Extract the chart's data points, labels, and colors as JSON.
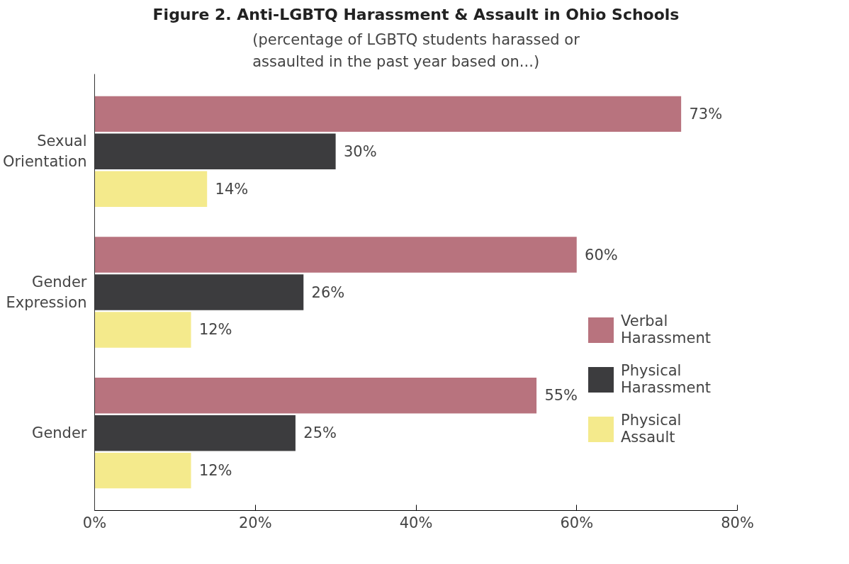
{
  "chart_data": {
    "type": "bar",
    "orientation": "horizontal",
    "title": "Figure 2. Anti-LGBTQ Harassment & Assault in Ohio Schools",
    "subtitle": "(percentage of LGBTQ students harassed or assaulted in the past year based on...)",
    "categories": [
      "Sexual\nOrientation",
      "Gender\nExpression",
      "Gender"
    ],
    "series": [
      {
        "name": "Verbal Harassment",
        "color": "#b8737e",
        "values": [
          73,
          60,
          55
        ],
        "value_labels": [
          "73%",
          "60%",
          "55%"
        ]
      },
      {
        "name": "Physical Harassment",
        "color": "#3c3c3e",
        "values": [
          30,
          26,
          25
        ],
        "value_labels": [
          "30%",
          "26%",
          "25%"
        ]
      },
      {
        "name": "Physical Assault",
        "color": "#f4ea8c",
        "values": [
          14,
          12,
          12
        ],
        "value_labels": [
          "14%",
          "12%",
          "12%"
        ]
      }
    ],
    "xlim": [
      0,
      80
    ],
    "xticks": [
      {
        "value": 0,
        "label": "0%"
      },
      {
        "value": 20,
        "label": "20%"
      },
      {
        "value": 40,
        "label": "40%"
      },
      {
        "value": 60,
        "label": "60%"
      },
      {
        "value": 80,
        "label": "80%"
      }
    ],
    "grid": false,
    "legend": "right"
  }
}
